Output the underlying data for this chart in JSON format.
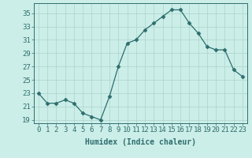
{
  "x": [
    0,
    1,
    2,
    3,
    4,
    5,
    6,
    7,
    8,
    9,
    10,
    11,
    12,
    13,
    14,
    15,
    16,
    17,
    18,
    19,
    20,
    21,
    22,
    23
  ],
  "y": [
    23,
    21.5,
    21.5,
    22,
    21.5,
    20,
    19.5,
    19,
    22.5,
    27,
    30.5,
    31,
    32.5,
    33.5,
    34.5,
    35.5,
    35.5,
    33.5,
    32,
    30,
    29.5,
    29.5,
    26.5,
    25.5
  ],
  "line_color": "#2d6e6e",
  "marker": "D",
  "marker_size": 2.5,
  "bg_color": "#cceee8",
  "grid_color": "#aad4cc",
  "xlabel": "Humidex (Indice chaleur)",
  "xlim": [
    -0.5,
    23.5
  ],
  "ylim": [
    18.5,
    36.5
  ],
  "yticks": [
    19,
    21,
    23,
    25,
    27,
    29,
    31,
    33,
    35
  ],
  "xtick_labels": [
    "0",
    "1",
    "2",
    "3",
    "4",
    "5",
    "6",
    "7",
    "8",
    "9",
    "10",
    "11",
    "12",
    "13",
    "14",
    "15",
    "16",
    "17",
    "18",
    "19",
    "20",
    "21",
    "22",
    "23"
  ],
  "axis_color": "#2d6e6e",
  "tick_color": "#2d6e6e",
  "label_color": "#2d6e6e",
  "font_size_xlabel": 7,
  "font_size_ticks": 6.5
}
